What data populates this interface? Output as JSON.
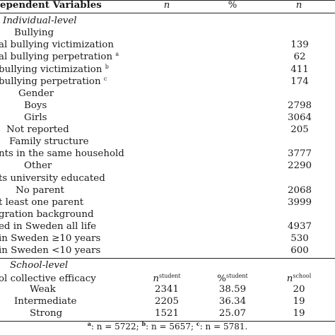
{
  "header": {
    "title": "ependent Variables",
    "n": "n",
    "pct": "%",
    "n2": "n"
  },
  "individual": {
    "section_label": "Individual-level",
    "rows": [
      {
        "label": "Bullying",
        "value": ""
      },
      {
        "label": "al bullying victimization",
        "value": "139"
      },
      {
        "label": "al bullying perpetration",
        "sup": "a",
        "value": "62"
      },
      {
        "label": "bullying victimization",
        "sup": "b",
        "value": "411"
      },
      {
        "label": "bullying perpetration",
        "sup": "c",
        "value": "174"
      },
      {
        "label": "Gender",
        "value": ""
      },
      {
        "label": "Boys",
        "value": "2798"
      },
      {
        "label": "Girls",
        "value": "3064"
      },
      {
        "label": "Not reported",
        "value": "205"
      },
      {
        "label": "Family structure",
        "value": ""
      },
      {
        "label": "nts in the same household",
        "value": "3777"
      },
      {
        "label": "Other",
        "value": "2290"
      },
      {
        "label": "ts university educated",
        "value": ""
      },
      {
        "label": "No parent",
        "value": "2068"
      },
      {
        "label": "t least one parent",
        "value": "3999"
      },
      {
        "label": "gration background",
        "value": ""
      },
      {
        "label": "ed in Sweden all life",
        "value": "4937"
      },
      {
        "label": "in Sweden ≥10 years",
        "value": "530"
      },
      {
        "label": "in Sweden <10 years",
        "value": "600"
      }
    ]
  },
  "school": {
    "section_label": "School-level",
    "variable_label": "ol collective efficacy",
    "col_n_student": "n",
    "col_n_student_sup": "student",
    "col_pct_student": "%",
    "col_pct_student_sup": "student",
    "col_n_school": "n",
    "col_n_school_sup": "school",
    "rows": [
      {
        "label": "Weak",
        "n_student": "2341",
        "pct_student": "38.59",
        "n_school": "20"
      },
      {
        "label": "Intermediate",
        "n_student": "2205",
        "pct_student": "36.34",
        "n_school": "19"
      },
      {
        "label": "Strong",
        "n_student": "1521",
        "pct_student": "25.07",
        "n_school": "19"
      }
    ]
  },
  "footnote": {
    "a_key": "a",
    "a_text": ": n = 5722; ",
    "b_key": "b",
    "b_text": ": n = 5657; ",
    "c_key": "c",
    "c_text": ": n = 5781."
  }
}
